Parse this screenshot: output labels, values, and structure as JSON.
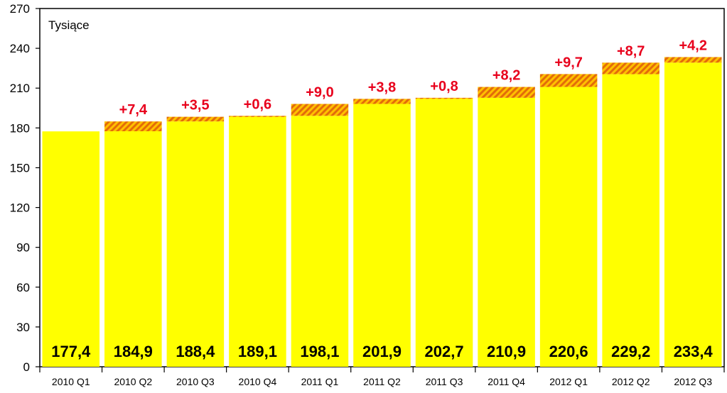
{
  "chart_data": {
    "type": "bar",
    "unit_label": "Tysiące",
    "categories": [
      "2010 Q1",
      "2010 Q2",
      "2010 Q3",
      "2010 Q4",
      "2011 Q1",
      "2011 Q2",
      "2011 Q3",
      "2011 Q4",
      "2012 Q1",
      "2012 Q2",
      "2012 Q3"
    ],
    "values": [
      177.4,
      184.9,
      188.4,
      189.1,
      198.1,
      201.9,
      202.7,
      210.9,
      220.6,
      229.2,
      233.4
    ],
    "value_labels": [
      "177,4",
      "184,9",
      "188,4",
      "189,1",
      "198,1",
      "201,9",
      "202,7",
      "210,9",
      "220,6",
      "229,2",
      "233,4"
    ],
    "increments": [
      null,
      7.4,
      3.5,
      0.6,
      9.0,
      3.8,
      0.8,
      8.2,
      9.7,
      8.7,
      4.2
    ],
    "increment_labels": [
      "",
      "+7,4",
      "+3,5",
      "+0,6",
      "+9,0",
      "+3,8",
      "+0,8",
      "+8,2",
      "+9,7",
      "+8,7",
      "+4,2"
    ],
    "ylim": [
      0,
      270
    ],
    "yticks": [
      "0",
      "30",
      "60",
      "90",
      "120",
      "150",
      "180",
      "210",
      "240",
      "270"
    ],
    "xlabel": "",
    "ylabel": "",
    "grid": false,
    "colors": {
      "bar": "#ffff00",
      "increment_fill": "#ffc000",
      "increment_hatch": "#e36c09",
      "increment_label": "#e8001c",
      "axis": "#000000"
    }
  }
}
